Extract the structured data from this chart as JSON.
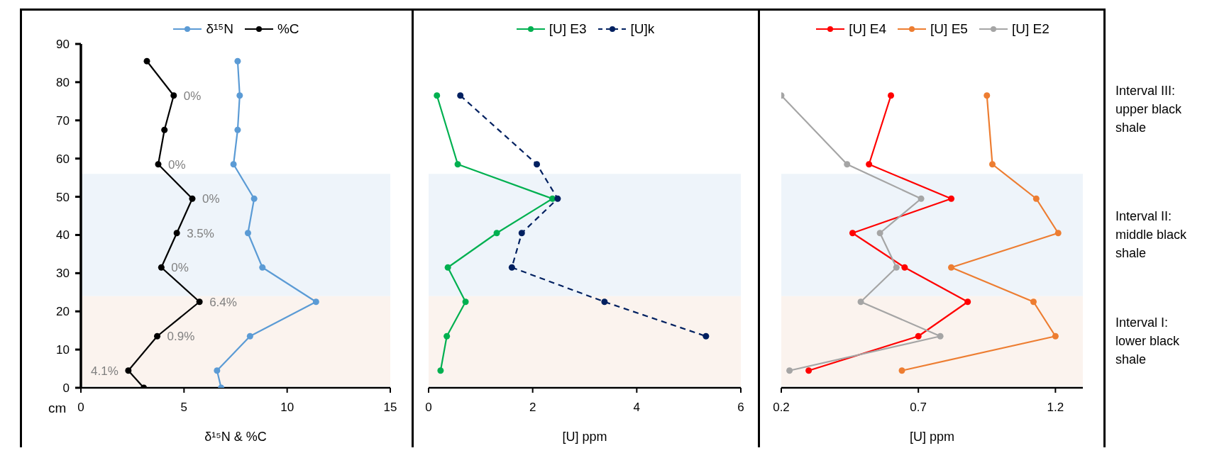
{
  "chart_data": [
    {
      "type": "line",
      "xlabel": "δ¹⁵N & %C",
      "ylabel": "cm",
      "xlim": [
        0,
        15
      ],
      "xticks": [
        0,
        5,
        10,
        15
      ],
      "ylim": [
        0,
        90
      ],
      "yticks": [
        0,
        10,
        20,
        30,
        40,
        50,
        60,
        70,
        80,
        90
      ],
      "legend": "top",
      "marker": "circle",
      "series": [
        {
          "name": "δ¹⁵N",
          "color": "#5b9bd5",
          "x": [
            7.6,
            7.7,
            7.6,
            7.4,
            8.4,
            8.1,
            8.8,
            11.4,
            8.2,
            6.6,
            6.8
          ],
          "values": [
            85.5,
            76.5,
            67.5,
            58.5,
            49.5,
            40.5,
            31.5,
            22.5,
            13.5,
            4.5,
            0
          ]
        },
        {
          "name": "%C",
          "color": "#000000",
          "x": [
            3.2,
            4.5,
            4.05,
            3.75,
            5.4,
            4.65,
            3.9,
            5.75,
            3.7,
            2.3,
            3.05
          ],
          "values": [
            85.5,
            76.5,
            67.5,
            58.5,
            49.5,
            40.5,
            31.5,
            22.5,
            13.5,
            4.5,
            0
          ]
        }
      ],
      "annotations": [
        {
          "text": "0%",
          "x": 4.5,
          "y": 76.5
        },
        {
          "text": "0%",
          "x": 3.75,
          "y": 58.5
        },
        {
          "text": "0%",
          "x": 5.4,
          "y": 49.5
        },
        {
          "text": "3.5%",
          "x": 4.65,
          "y": 40.5
        },
        {
          "text": "0%",
          "x": 3.9,
          "y": 31.5
        },
        {
          "text": "6.4%",
          "x": 5.75,
          "y": 22.5
        },
        {
          "text": "0.9%",
          "x": 3.7,
          "y": 13.5
        },
        {
          "text": "4.1%",
          "x": 2.3,
          "y": 4.5
        }
      ],
      "bands": [
        {
          "axis": "y",
          "from": 24,
          "to": 56,
          "color": "#eef4fa"
        },
        {
          "axis": "y",
          "from": 0.5,
          "to": 24,
          "color": "#fbf3ee"
        }
      ]
    },
    {
      "type": "line",
      "xlabel": "[U] ppm",
      "xlim": [
        0,
        6
      ],
      "xticks": [
        0,
        2,
        4,
        6
      ],
      "ylim": [
        0,
        90
      ],
      "tick_labels": "x",
      "legend": "top",
      "marker": "circle",
      "series": [
        {
          "name": "[U] E3",
          "color": "#00b050",
          "x": [
            0.16,
            0.56,
            2.38,
            1.31,
            0.37,
            0.71,
            0.35,
            0.23
          ],
          "values": [
            76.5,
            58.5,
            49.5,
            40.5,
            31.5,
            22.5,
            13.5,
            4.5
          ]
        },
        {
          "name": "[U]k",
          "color": "#002060",
          "line_style": "dashed",
          "x": [
            0.61,
            2.08,
            2.48,
            1.79,
            1.6,
            3.38,
            5.33
          ],
          "values": [
            76.5,
            58.5,
            49.5,
            40.5,
            31.5,
            22.5,
            13.5
          ]
        }
      ],
      "bands": [
        {
          "axis": "y",
          "from": 24,
          "to": 56,
          "color": "#eef4fa"
        },
        {
          "axis": "y",
          "from": 0.5,
          "to": 24,
          "color": "#fbf3ee"
        }
      ]
    },
    {
      "type": "line",
      "xlabel": "[U] ppm",
      "xlim": [
        0.2,
        1.3
      ],
      "xticks": [
        0.2,
        0.7,
        1.2
      ],
      "ylim": [
        0,
        90
      ],
      "tick_labels": "x",
      "legend": "top",
      "marker": "circle",
      "series": [
        {
          "name": "[U] E4",
          "color": "#ff0000",
          "x": [
            0.6,
            0.52,
            0.82,
            0.46,
            0.65,
            0.88,
            0.7,
            0.3
          ],
          "values": [
            76.5,
            58.5,
            49.5,
            40.5,
            31.5,
            22.5,
            13.5,
            4.5
          ]
        },
        {
          "name": "[U] E5",
          "color": "#ed7d31",
          "x": [
            0.95,
            0.97,
            1.13,
            1.21,
            0.82,
            1.12,
            1.2,
            0.64
          ],
          "values": [
            76.5,
            58.5,
            49.5,
            40.5,
            31.5,
            22.5,
            13.5,
            4.5
          ]
        },
        {
          "name": "[U] E2",
          "color": "#a5a5a5",
          "x": [
            0.2,
            0.44,
            0.71,
            0.56,
            0.62,
            0.49,
            0.78,
            0.23
          ],
          "values": [
            76.5,
            58.5,
            49.5,
            40.5,
            31.5,
            22.5,
            13.5,
            4.5
          ]
        }
      ],
      "bands": [
        {
          "axis": "y",
          "from": 24,
          "to": 56,
          "color": "#eef4fa",
          "label": "Interval II: middle black shale"
        },
        {
          "axis": "y",
          "from": 0.5,
          "to": 24,
          "color": "#fbf3ee",
          "label": "Interval I: lower black shale"
        }
      ],
      "annotations": [
        "Interval III: upper black shale"
      ]
    }
  ]
}
